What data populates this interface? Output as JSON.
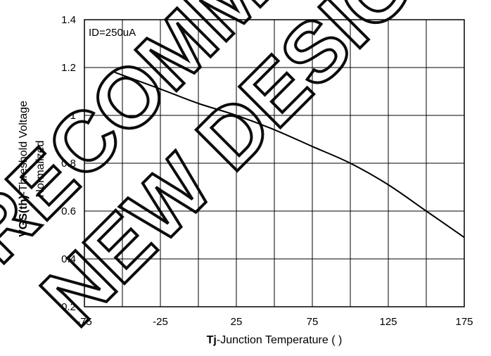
{
  "chart_data": {
    "type": "line",
    "annotation": "ID=250uA",
    "xlabel_bold": "Tj",
    "xlabel_rest": "-Junction  Temperature  (    )",
    "ylabel_bold": "VGS(th)",
    "ylabel_rest": "-Threshold  Voltage",
    "ylabel_line2": "Normalized",
    "xlim": [
      -75,
      175
    ],
    "ylim": [
      0.2,
      1.4
    ],
    "xticks": [
      -75,
      -25,
      25,
      75,
      125,
      175
    ],
    "xtick_labels": [
      "-75",
      "-25",
      "25",
      "75",
      "125",
      "175"
    ],
    "yticks": [
      0.2,
      0.4,
      0.6,
      0.8,
      1.0,
      1.2,
      1.4
    ],
    "ytick_labels": [
      "0.2",
      "0.4",
      "0.6",
      "0.8",
      "1",
      "1.2",
      "1.4"
    ],
    "x_grid_step": 25,
    "y_grid_step": 0.2,
    "grid": true,
    "series": [
      {
        "color": "#000000",
        "x": [
          -55,
          -25,
          0,
          25,
          50,
          75,
          100,
          125,
          150,
          175
        ],
        "y": [
          1.18,
          1.11,
          1.05,
          1.0,
          0.94,
          0.87,
          0.8,
          0.71,
          0.6,
          0.49
        ]
      }
    ]
  },
  "watermark": {
    "line1": "NEW DESIGN",
    "line2": "RECOMMEND"
  }
}
